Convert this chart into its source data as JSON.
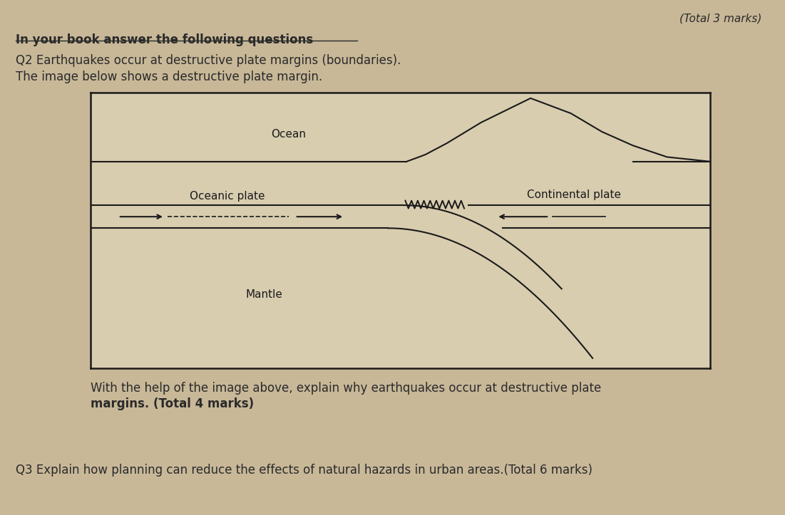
{
  "bg_color": "#c8b898",
  "title_top_right": "(Total 3 marks)",
  "heading": "In your book answer the following questions",
  "q2_line1": "Q2 Earthquakes occur at destructive plate margins (boundaries).",
  "q2_line2": "The image below shows a destructive plate margin.",
  "q2_explain_1": "With the help of the image above, explain why earthquakes occur at destructive plate",
  "q2_explain_2": "margins. (Total 4 marks)",
  "q3_text": "Q3 Explain how planning can reduce the effects of natural hazards in urban areas.(Total 6 marks)",
  "ocean_label": "Ocean",
  "oceanic_label": "Oceanic plate",
  "continental_label": "Continental plate",
  "mantle_label": "Mantle",
  "text_color": "#2a2a2a",
  "diagram_bg": "#d9cdb0",
  "line_color": "#1a1a1a"
}
